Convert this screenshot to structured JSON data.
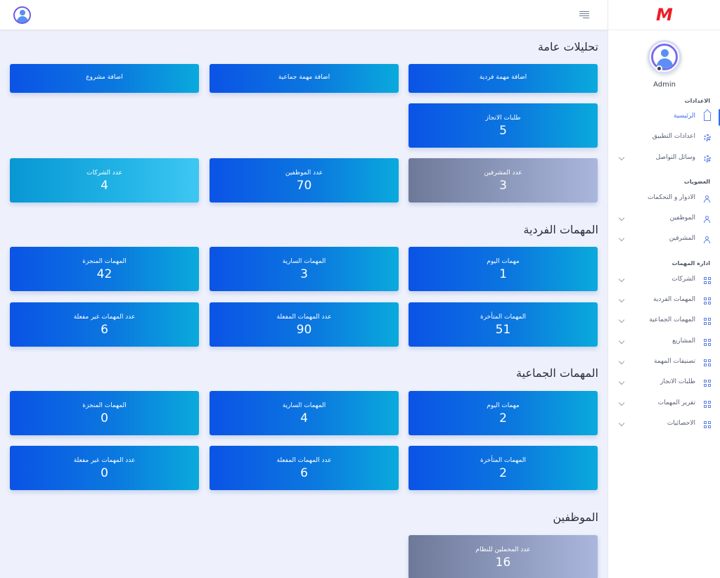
{
  "sidebar": {
    "logo": "M",
    "profile_name": "Admin",
    "sections": [
      {
        "title": "الاعدادات"
      },
      {
        "title": "العضويات"
      },
      {
        "title": "ادارة المهمات"
      }
    ],
    "items": [
      {
        "label": "الرئيسية",
        "icon": "home-icon",
        "active": true
      },
      {
        "label": "اعدادات التطبيق",
        "icon": "gear-icon"
      },
      {
        "label": "وسائل التواصل",
        "icon": "settings-cog-icon"
      },
      {
        "label": "الادوار و التحكمات",
        "icon": "users-icon"
      },
      {
        "label": "الموظفين",
        "icon": "users-icon"
      },
      {
        "label": "المشرفين",
        "icon": "users-icon"
      },
      {
        "label": "الشركات",
        "icon": "grid-icon"
      },
      {
        "label": "المهمات الفردية",
        "icon": "grid-icon"
      },
      {
        "label": "المهمات الجماعية",
        "icon": "grid-icon"
      },
      {
        "label": "المشاريع",
        "icon": "grid-icon"
      },
      {
        "label": "تصنيفات المهمة",
        "icon": "grid-icon"
      },
      {
        "label": "طلبات الانجاز",
        "icon": "grid-icon"
      },
      {
        "label": "تقرير المهمات",
        "icon": "grid-icon"
      },
      {
        "label": "الاحصائيات",
        "icon": "grid-icon"
      }
    ]
  },
  "main": {
    "general": {
      "title": "تحليلات عامة",
      "actions": {
        "add_single_task": "اضافة مهمة فردية",
        "add_group_task": "اضافة مهمة جماعية",
        "add_project": "اضافة مشروع"
      },
      "completion_requests": {
        "label": "طلبات الانجاز",
        "value": "5"
      },
      "supervisors": {
        "label": "عدد المشرفين",
        "value": "3"
      },
      "employees": {
        "label": "عدد الموظفين",
        "value": "70"
      },
      "companies": {
        "label": "عدد الشركات",
        "value": "4"
      }
    },
    "individual": {
      "title": "المهمات الفردية",
      "today": {
        "label": "مهمات اليوم",
        "value": "1"
      },
      "ongoing": {
        "label": "المهمات السارية",
        "value": "3"
      },
      "completed": {
        "label": "المهمات المنجزة",
        "value": "42"
      },
      "late": {
        "label": "المهمات المتأخرة",
        "value": "51"
      },
      "activated": {
        "label": "عدد المهمات المفعلة",
        "value": "90"
      },
      "inactive": {
        "label": "عدد المهمات غير مفعلة",
        "value": "6"
      }
    },
    "group": {
      "title": "المهمات الجماعية",
      "today": {
        "label": "مهمات اليوم",
        "value": "2"
      },
      "ongoing": {
        "label": "المهمات السارية",
        "value": "4"
      },
      "completed": {
        "label": "المهمات المنجزة",
        "value": "0"
      },
      "late": {
        "label": "المهمات المتأخرة",
        "value": "2"
      },
      "activated": {
        "label": "عدد المهمات المفعلة",
        "value": "6"
      },
      "inactive": {
        "label": "عدد المهمات غير مفعلة",
        "value": "0"
      }
    },
    "employees_section": {
      "title": "الموظفين",
      "system_users": {
        "label": "عدد المحملين للنظام",
        "value": "16"
      }
    }
  },
  "colors": {
    "accent": "#2f6ff0",
    "logo": "#ee1c25",
    "card_blue_start": "#0b53e6",
    "card_blue_end": "#0aaadc",
    "card_gray": "#8f9bbe",
    "card_cyan": "#22b4e6"
  }
}
